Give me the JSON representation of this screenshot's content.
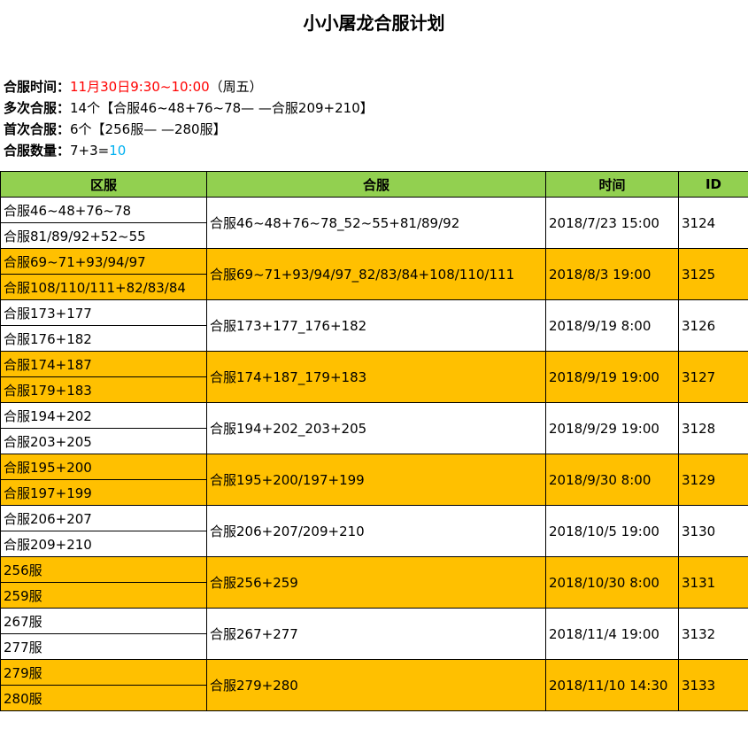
{
  "title": "小小屠龙合服计划",
  "info": [
    {
      "label": "合服时间：",
      "segments": [
        "11月30日9:30~10:00",
        "（周五）"
      ]
    },
    {
      "label": "多次合服：",
      "segments": [
        "14个【合服46~48+76~78— —合服209+210】"
      ]
    },
    {
      "label": "首次合服：",
      "segments": [
        "6个【256服— —280服】"
      ]
    },
    {
      "label": "合服数量：",
      "segments": [
        "7+3=",
        "10"
      ]
    }
  ],
  "table": {
    "header": [
      "区服",
      "合服",
      "时间",
      "ID"
    ],
    "rows": [
      {
        "zones": [
          "合服46~48+76~78",
          "合服81/89/92+52~55"
        ],
        "merge": "合服46~48+76~78_52~55+81/89/92",
        "time": "2018/7/23 15:00",
        "id": "3124"
      },
      {
        "zones": [
          "合服69~71+93/94/97",
          "合服108/110/111+82/83/84"
        ],
        "merge": "合服69~71+93/94/97_82/83/84+108/110/111",
        "time": "2018/8/3 19:00",
        "id": "3125"
      },
      {
        "zones": [
          "合服173+177",
          "合服176+182"
        ],
        "merge": "合服173+177_176+182",
        "time": "2018/9/19 8:00",
        "id": "3126"
      },
      {
        "zones": [
          "合服174+187",
          "合服179+183"
        ],
        "merge": "合服174+187_179+183",
        "time": "2018/9/19 19:00",
        "id": "3127"
      },
      {
        "zones": [
          "合服194+202",
          "合服203+205"
        ],
        "merge": "合服194+202_203+205",
        "time": "2018/9/29 19:00",
        "id": "3128"
      },
      {
        "zones": [
          "合服195+200",
          "合服197+199"
        ],
        "merge": "合服195+200/197+199",
        "time": "2018/9/30 8:00",
        "id": "3129"
      },
      {
        "zones": [
          "合服206+207",
          "合服209+210"
        ],
        "merge": "合服206+207/209+210",
        "time": "2018/10/5 19:00",
        "id": "3130"
      },
      {
        "zones": [
          "256服",
          "259服"
        ],
        "merge": "合服256+259",
        "time": "2018/10/30 8:00",
        "id": "3131"
      },
      {
        "zones": [
          "267服",
          "277服"
        ],
        "merge": "合服267+277",
        "time": "2018/11/4 19:00",
        "id": "3132"
      },
      {
        "zones": [
          "279服",
          "280服"
        ],
        "merge": "合服279+280",
        "time": "2018/11/10 14:30",
        "id": "3133"
      }
    ]
  }
}
